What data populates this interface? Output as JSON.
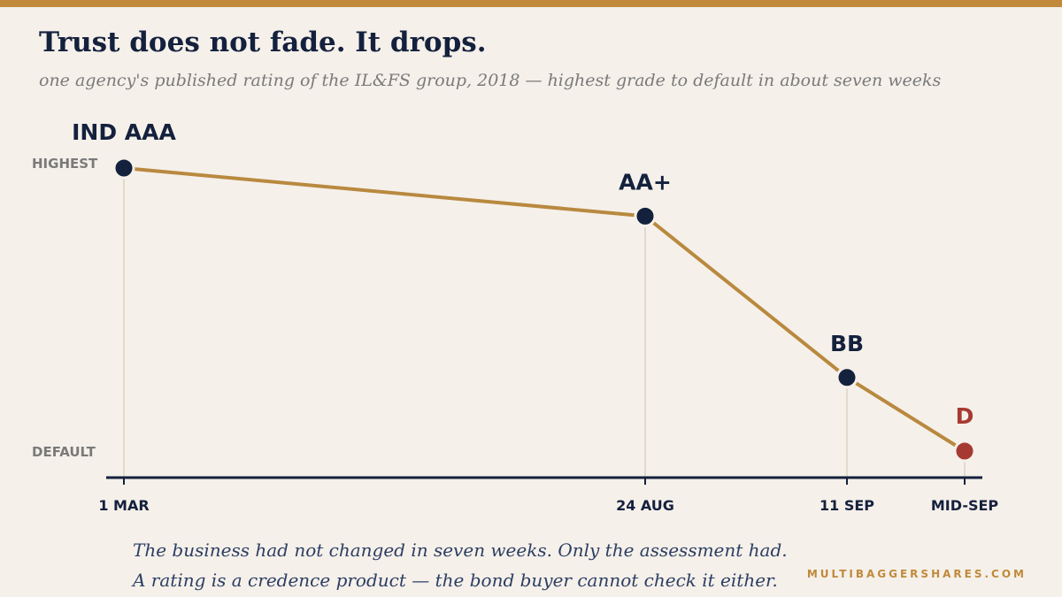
{
  "header": {
    "title": "Trust does not fade. It drops.",
    "subtitle": "one agency's published rating of the IL&FS group, 2018 — highest grade to default in about seven weeks"
  },
  "chart_data": {
    "type": "line",
    "y_labels": {
      "top": "HIGHEST",
      "bottom": "DEFAULT"
    },
    "ylim": [
      0,
      1
    ],
    "grid": false,
    "series": [
      {
        "points": [
          {
            "x_label": "1 MAR",
            "day": 60,
            "grade": "IND AAA",
            "level": 1.0,
            "color": "#14213d"
          },
          {
            "x_label": "24 AUG",
            "day": 236,
            "grade": "AA+",
            "level": 0.83,
            "color": "#14213d"
          },
          {
            "x_label": "11 SEP",
            "day": 254,
            "grade": "BB",
            "level": 0.26,
            "color": "#14213d"
          },
          {
            "x_label": "MID-SEP",
            "day": 258,
            "grade": "D",
            "level": 0.0,
            "color": "#a63a32"
          }
        ]
      }
    ],
    "colors": {
      "line": "#b9893f",
      "axis": "#14213d",
      "guide": "#ddd3c4",
      "label": "#7a7a7a"
    }
  },
  "footer": {
    "line1": "The business had not changed in seven weeks. Only the assessment had.",
    "line2": "A rating is a credence product — the bond buyer cannot check it either.",
    "brand": "MULTIBAGGERSHARES.COM"
  }
}
